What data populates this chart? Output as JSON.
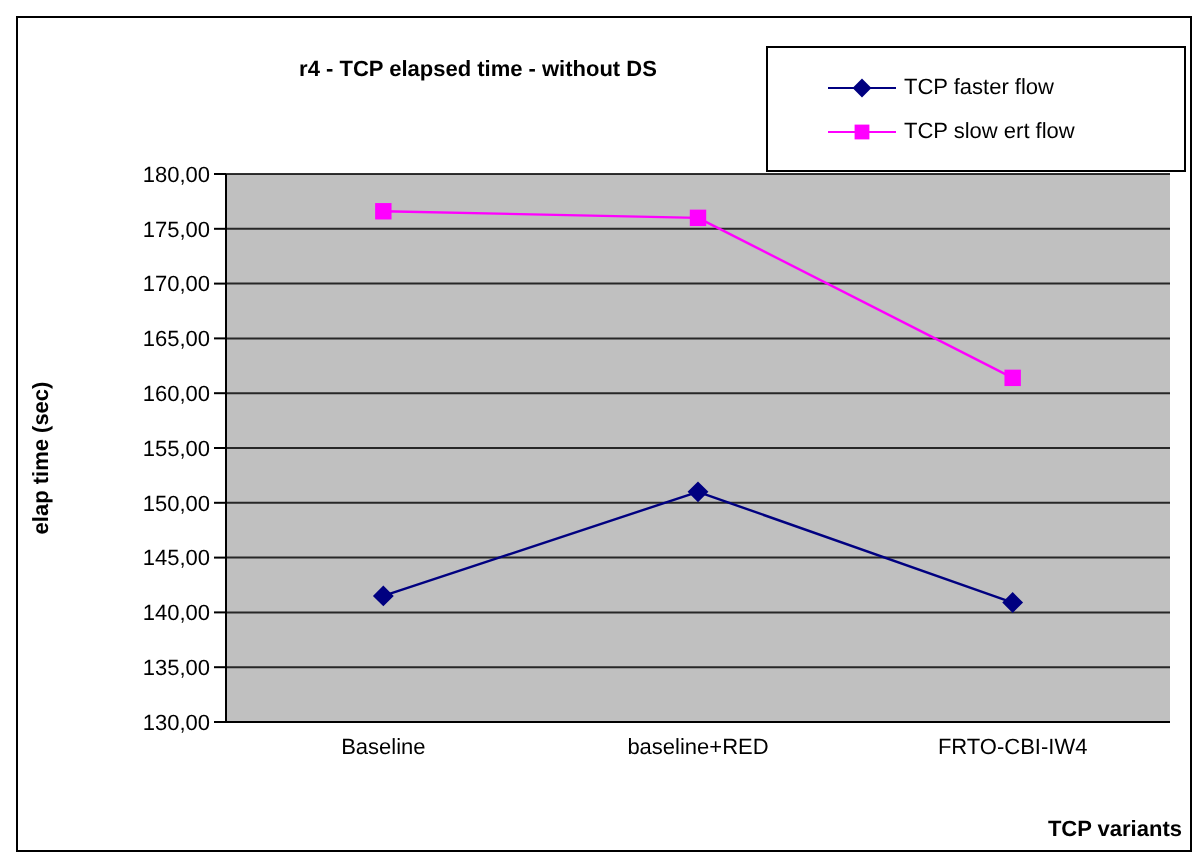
{
  "chart_data": {
    "type": "line",
    "title": "r4 - TCP elapsed time - without DS",
    "xlabel": "TCP variants",
    "ylabel": "elap time (sec)",
    "categories": [
      "Baseline",
      "baseline+RED",
      "FRTO-CBI-IW4"
    ],
    "series": [
      {
        "name": "TCP faster flow",
        "color": "#000080",
        "marker": "diamond",
        "values": [
          141.5,
          151.0,
          140.9
        ]
      },
      {
        "name": "TCP slow ert flow",
        "color": "#ff00ff",
        "marker": "square",
        "values": [
          176.6,
          176.0,
          161.4
        ]
      }
    ],
    "ylim": [
      130,
      180
    ],
    "yticks": [
      {
        "value": 130,
        "label": "130,00"
      },
      {
        "value": 135,
        "label": "135,00"
      },
      {
        "value": 140,
        "label": "140,00"
      },
      {
        "value": 145,
        "label": "145,00"
      },
      {
        "value": 150,
        "label": "150,00"
      },
      {
        "value": 155,
        "label": "155,00"
      },
      {
        "value": 160,
        "label": "160,00"
      },
      {
        "value": 165,
        "label": "165,00"
      },
      {
        "value": 170,
        "label": "170,00"
      },
      {
        "value": 175,
        "label": "175,00"
      },
      {
        "value": 180,
        "label": "180,00"
      }
    ],
    "grid": "y",
    "legend": "top right"
  }
}
